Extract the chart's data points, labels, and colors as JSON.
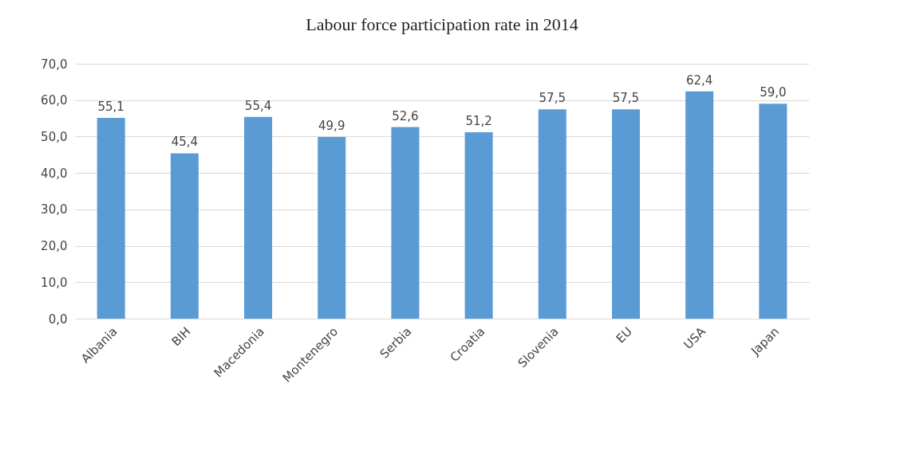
{
  "chart_data": {
    "type": "bar",
    "title": "Labour force participation rate in 2014",
    "categories": [
      "Albania",
      "BIH",
      "Macedonia",
      "Montenegro",
      "Serbia",
      "Croatia",
      "Slovenia",
      "EU",
      "USA",
      "Japan"
    ],
    "values": [
      55.1,
      45.4,
      55.4,
      49.9,
      52.6,
      51.2,
      57.5,
      57.5,
      62.4,
      59.0
    ],
    "value_labels": [
      "55,1",
      "45,4",
      "55,4",
      "49,9",
      "52,6",
      "51,2",
      "57,5",
      "57,5",
      "62,4",
      "59,0"
    ],
    "color": "#5b9bd5",
    "ylim": [
      0,
      70
    ],
    "yticks": [
      {
        "value": 0,
        "label": "0,0"
      },
      {
        "value": 10,
        "label": "10,0"
      },
      {
        "value": 20,
        "label": "20,0"
      },
      {
        "value": 30,
        "label": "30,0"
      },
      {
        "value": 40,
        "label": "40,0"
      },
      {
        "value": 50,
        "label": "50,0"
      },
      {
        "value": 60,
        "label": "60,0"
      },
      {
        "value": 70,
        "label": "70,0"
      }
    ],
    "grid": "y"
  }
}
